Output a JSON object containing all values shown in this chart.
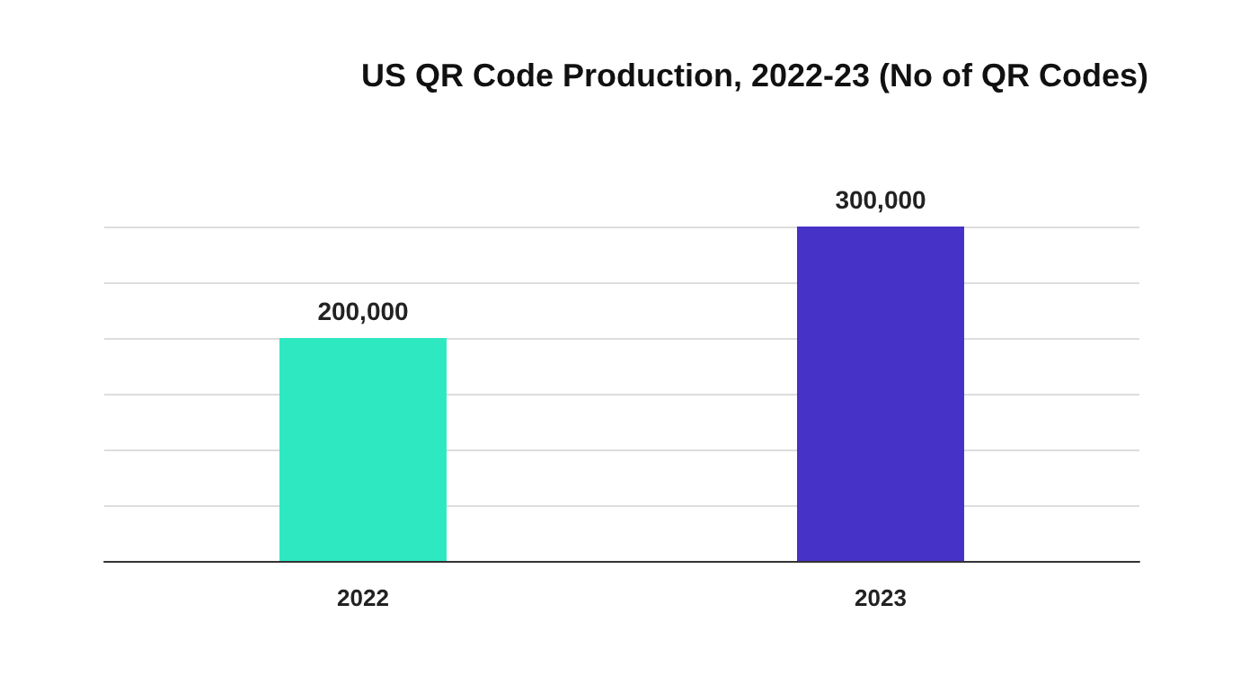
{
  "chart_data": {
    "type": "bar",
    "title": "US QR Code Production, 2022-23 (No of QR Codes)",
    "categories": [
      "2022",
      "2023"
    ],
    "values": [
      200000,
      300000
    ],
    "value_labels": [
      "200,000",
      "300,000"
    ],
    "colors": [
      "#2ee8c2",
      "#4632c6"
    ],
    "grid": "y"
  }
}
